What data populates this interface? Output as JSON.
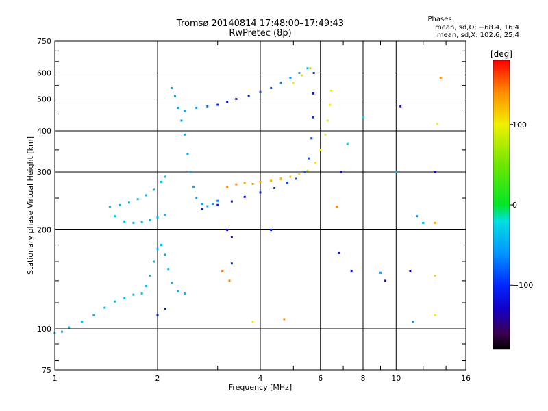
{
  "header": {
    "title_line1": "Tromsø 20140814 17:48:00–17:49:43",
    "title_line2": "RwPretec (8p)",
    "phases_label": "Phases",
    "stat_o": "mean, sd,O: −68.4, 16.4",
    "stat_x": "mean, sd,X: 102.6, 25.4"
  },
  "colorbar": {
    "unit_label": "[deg]",
    "range": [
      -180,
      180
    ],
    "ticks": [
      {
        "value": 100,
        "label": "100"
      },
      {
        "value": 0,
        "label": "0"
      },
      {
        "value": -100,
        "label": "−100"
      }
    ],
    "gradient_stops": [
      {
        "value": -180,
        "color": "#000000"
      },
      {
        "value": -160,
        "color": "#3a0050"
      },
      {
        "value": -130,
        "color": "#1400c8"
      },
      {
        "value": -100,
        "color": "#0028ff"
      },
      {
        "value": -60,
        "color": "#0096ff"
      },
      {
        "value": -20,
        "color": "#00e0e0"
      },
      {
        "value": 0,
        "color": "#00e628"
      },
      {
        "value": 50,
        "color": "#6ee600"
      },
      {
        "value": 100,
        "color": "#f0f000"
      },
      {
        "value": 140,
        "color": "#ff8c00"
      },
      {
        "value": 180,
        "color": "#ff0000"
      }
    ]
  },
  "chart_data": {
    "type": "scatter",
    "title": "Tromsø 20140814 17:48:00–17:49:43",
    "subtitle": "RwPretec (8p)",
    "xlabel": "Frequency [MHz]",
    "ylabel": "Stationary phase Virtual Height [km]",
    "xscale": "log",
    "yscale": "log",
    "xlim": [
      1,
      16
    ],
    "ylim": [
      75,
      750
    ],
    "grid": true,
    "x_ticks": [
      {
        "value": 1,
        "label": "1"
      },
      {
        "value": 2,
        "label": "2"
      },
      {
        "value": 4,
        "label": "4"
      },
      {
        "value": 6,
        "label": "6"
      },
      {
        "value": 8,
        "label": "8"
      },
      {
        "value": 10,
        "label": "10"
      },
      {
        "value": 16,
        "label": "16"
      }
    ],
    "x_gridlines": [
      2,
      4,
      6,
      8,
      10
    ],
    "x_minor_ticks": [
      3,
      5,
      7,
      9,
      12,
      14
    ],
    "y_ticks": [
      {
        "value": 75,
        "label": "75"
      },
      {
        "value": 100,
        "label": "100"
      },
      {
        "value": 200,
        "label": "200"
      },
      {
        "value": 300,
        "label": "300"
      },
      {
        "value": 400,
        "label": "400"
      },
      {
        "value": 500,
        "label": "500"
      },
      {
        "value": 600,
        "label": "600"
      },
      {
        "value": 750,
        "label": "750"
      }
    ],
    "y_gridlines": [
      100,
      200,
      300,
      400,
      500,
      600
    ],
    "y_minor_ticks": [
      80,
      90,
      120,
      140,
      160,
      180,
      250,
      350,
      450,
      550,
      650,
      700
    ],
    "color_meaning": "phase in degrees",
    "series": [
      {
        "points": [
          [
            1.0,
            97,
            -40
          ],
          [
            1.05,
            98,
            -40
          ],
          [
            1.1,
            101,
            -40
          ],
          [
            1.2,
            105,
            -40
          ],
          [
            1.3,
            110,
            -40
          ],
          [
            1.4,
            116,
            -35
          ],
          [
            1.5,
            121,
            -35
          ],
          [
            1.6,
            124,
            -35
          ],
          [
            1.7,
            127,
            -35
          ],
          [
            1.8,
            128,
            -35
          ],
          [
            1.85,
            135,
            -35
          ],
          [
            1.9,
            145,
            -40
          ],
          [
            1.95,
            160,
            -40
          ],
          [
            2.0,
            175,
            -45
          ],
          [
            2.05,
            180,
            -45
          ],
          [
            2.1,
            168,
            -45
          ],
          [
            2.15,
            152,
            -40
          ],
          [
            2.2,
            138,
            -40
          ],
          [
            2.3,
            130,
            -40
          ],
          [
            2.4,
            128,
            -40
          ]
        ]
      },
      {
        "points": [
          [
            1.5,
            220,
            -40
          ],
          [
            1.6,
            212,
            -40
          ],
          [
            1.7,
            210,
            -40
          ],
          [
            1.8,
            211,
            -40
          ],
          [
            1.9,
            214,
            -40
          ],
          [
            2.0,
            218,
            -40
          ],
          [
            2.1,
            222,
            -40
          ]
        ]
      },
      {
        "points": [
          [
            1.45,
            235,
            -40
          ],
          [
            1.55,
            238,
            -40
          ],
          [
            1.65,
            242,
            -40
          ],
          [
            1.75,
            248,
            -40
          ],
          [
            1.85,
            255,
            -40
          ],
          [
            1.95,
            265,
            -40
          ],
          [
            2.05,
            280,
            -40
          ],
          [
            2.1,
            290,
            -40
          ]
        ]
      },
      {
        "points": [
          [
            2.2,
            540,
            -50
          ],
          [
            2.25,
            510,
            -50
          ],
          [
            2.3,
            470,
            -50
          ],
          [
            2.35,
            430,
            -50
          ],
          [
            2.4,
            390,
            -50
          ],
          [
            2.45,
            340,
            -50
          ],
          [
            2.5,
            300,
            -50
          ],
          [
            2.55,
            270,
            -50
          ],
          [
            2.6,
            250,
            -50
          ],
          [
            2.7,
            240,
            -50
          ],
          [
            2.8,
            236,
            -50
          ],
          [
            2.9,
            240,
            -60
          ],
          [
            3.0,
            245,
            -70
          ]
        ]
      },
      {
        "points": [
          [
            2.4,
            460,
            -50
          ],
          [
            2.6,
            470,
            -60
          ],
          [
            2.8,
            475,
            -80
          ],
          [
            3.0,
            480,
            -100
          ],
          [
            3.2,
            490,
            -110
          ],
          [
            3.4,
            500,
            -110
          ],
          [
            3.7,
            510,
            -100
          ],
          [
            4.0,
            525,
            -90
          ],
          [
            4.3,
            540,
            -80
          ],
          [
            4.6,
            560,
            -70
          ],
          [
            4.9,
            580,
            -60
          ],
          [
            5.2,
            600,
            -40
          ],
          [
            5.5,
            620,
            -30
          ]
        ]
      },
      {
        "points": [
          [
            2.7,
            232,
            -110
          ],
          [
            3.0,
            238,
            -110
          ],
          [
            3.3,
            244,
            -110
          ],
          [
            3.6,
            252,
            -110
          ],
          [
            4.0,
            260,
            -100
          ],
          [
            4.4,
            268,
            -100
          ],
          [
            4.8,
            278,
            -90
          ],
          [
            5.1,
            286,
            -90
          ],
          [
            5.4,
            300,
            -80
          ],
          [
            5.55,
            330,
            -80
          ],
          [
            5.65,
            380,
            -90
          ],
          [
            5.7,
            440,
            -100
          ],
          [
            5.72,
            520,
            -110
          ],
          [
            5.74,
            600,
            -110
          ]
        ]
      },
      {
        "points": [
          [
            3.2,
            270,
            140
          ],
          [
            3.4,
            275,
            140
          ],
          [
            3.6,
            278,
            130
          ],
          [
            3.8,
            276,
            130
          ],
          [
            4.0,
            280,
            130
          ],
          [
            4.3,
            282,
            130
          ],
          [
            4.6,
            287,
            120
          ]
        ]
      },
      {
        "points": [
          [
            4.6,
            285,
            120
          ],
          [
            4.9,
            290,
            120
          ],
          [
            5.2,
            295,
            110
          ],
          [
            5.5,
            303,
            100
          ],
          [
            5.8,
            320,
            100
          ],
          [
            6.0,
            350,
            100
          ],
          [
            6.2,
            390,
            100
          ],
          [
            6.3,
            430,
            100
          ],
          [
            6.4,
            480,
            100
          ],
          [
            6.45,
            530,
            100
          ]
        ]
      },
      {
        "points": [
          [
            5.0,
            560,
            100
          ],
          [
            5.3,
            590,
            110
          ],
          [
            5.6,
            620,
            120
          ]
        ]
      },
      {
        "points": [
          [
            2.0,
            110,
            -110
          ],
          [
            2.1,
            115,
            -110
          ],
          [
            3.2,
            200,
            -120
          ],
          [
            3.3,
            158,
            -100
          ],
          [
            3.25,
            140,
            140
          ],
          [
            3.1,
            150,
            150
          ],
          [
            3.3,
            190,
            -120
          ],
          [
            4.7,
            107,
            140
          ],
          [
            6.8,
            170,
            -120
          ],
          [
            6.9,
            300,
            -120
          ],
          [
            6.7,
            235,
            140
          ],
          [
            7.2,
            365,
            -30
          ],
          [
            7.4,
            150,
            -120
          ],
          [
            8.0,
            440,
            -30
          ],
          [
            9.0,
            148,
            -60
          ],
          [
            9.3,
            140,
            -120
          ],
          [
            10.0,
            300,
            -40
          ],
          [
            10.3,
            475,
            -120
          ],
          [
            11.0,
            150,
            -130
          ],
          [
            11.2,
            105,
            -60
          ],
          [
            11.5,
            220,
            -60
          ],
          [
            12.0,
            210,
            -40
          ],
          [
            13.0,
            300,
            -130
          ],
          [
            13.0,
            210,
            130
          ],
          [
            13.2,
            420,
            100
          ],
          [
            13.5,
            580,
            140
          ],
          [
            13.0,
            145,
            110
          ],
          [
            13.0,
            110,
            100
          ],
          [
            4.3,
            200,
            -110
          ],
          [
            3.8,
            105,
            100
          ]
        ]
      }
    ]
  }
}
